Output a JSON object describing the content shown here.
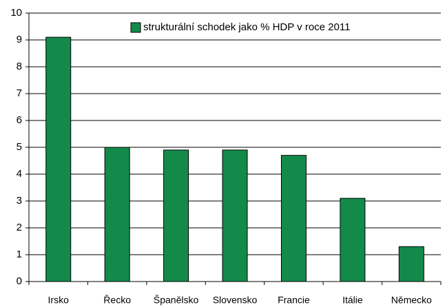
{
  "chart_data": {
    "type": "bar",
    "categories": [
      "Irsko",
      "Řecko",
      "Španělsko",
      "Slovensko",
      "Francie",
      "Itálie",
      "Německo"
    ],
    "series": [
      {
        "name": "strukturální schodek jako % HDP v roce 2011",
        "color": "#138a4a",
        "values": [
          9.1,
          5.0,
          4.9,
          4.9,
          4.7,
          3.1,
          1.3
        ]
      }
    ],
    "ylim": [
      0,
      10
    ],
    "yticks": [
      0,
      1,
      2,
      3,
      4,
      5,
      6,
      7,
      8,
      9,
      10
    ],
    "grid": true,
    "legend": "top-right"
  }
}
